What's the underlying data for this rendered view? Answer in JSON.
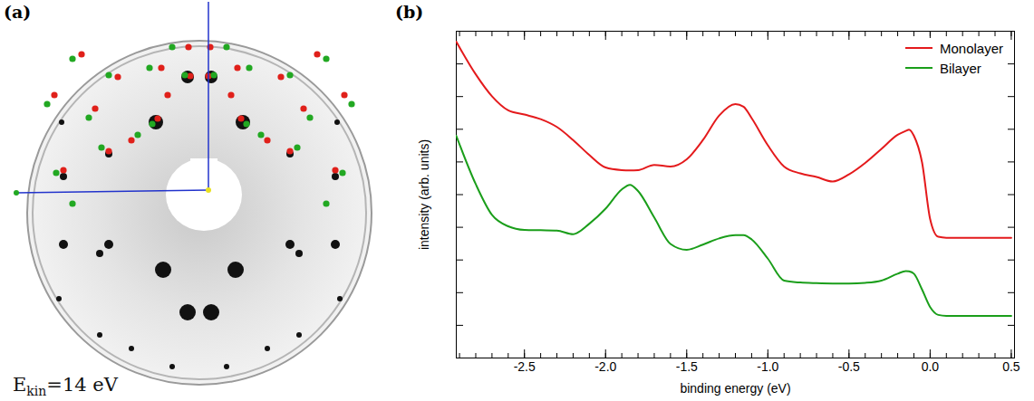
{
  "image_panel": {
    "label": "(a)",
    "energy_label": {
      "symbol": "E",
      "subscript": "kin",
      "text": "=14 eV"
    }
  },
  "chart_data": {
    "type": "line",
    "panel_label": "(b)",
    "x_label": "binding energy (eV)",
    "y_label": "intensity (arb. units)",
    "x": [
      -2.92,
      -2.8,
      -2.7,
      -2.6,
      -2.5,
      -2.4,
      -2.3,
      -2.2,
      -2.1,
      -2.0,
      -1.9,
      -1.85,
      -1.8,
      -1.7,
      -1.6,
      -1.5,
      -1.4,
      -1.3,
      -1.2,
      -1.15,
      -1.1,
      -1.0,
      -0.9,
      -0.8,
      -0.7,
      -0.6,
      -0.5,
      -0.4,
      -0.3,
      -0.2,
      -0.15,
      -0.13,
      -0.1,
      -0.05,
      0.0,
      0.05,
      0.1,
      0.2,
      0.3,
      0.4,
      0.5
    ],
    "series": [
      {
        "name": "Monolayer",
        "color": "#e41a1c",
        "values": [
          9.68,
          8.68,
          8.01,
          7.58,
          7.45,
          7.31,
          7.07,
          6.67,
          6.21,
          5.83,
          5.75,
          5.74,
          5.75,
          5.91,
          5.86,
          6.08,
          6.67,
          7.42,
          7.77,
          7.69,
          7.34,
          6.51,
          5.86,
          5.65,
          5.54,
          5.4,
          5.62,
          5.97,
          6.4,
          6.83,
          6.95,
          6.99,
          6.8,
          5.99,
          4.25,
          3.71,
          3.68,
          3.68,
          3.68,
          3.68,
          3.68
        ]
      },
      {
        "name": "Bilayer",
        "color": "#1a9e1a",
        "values": [
          6.8,
          5.32,
          4.38,
          4.03,
          3.92,
          3.91,
          3.9,
          3.79,
          4.11,
          4.57,
          5.16,
          5.3,
          5.11,
          4.3,
          3.49,
          3.31,
          3.47,
          3.66,
          3.76,
          3.76,
          3.63,
          3.04,
          2.37,
          2.31,
          2.29,
          2.28,
          2.28,
          2.3,
          2.37,
          2.58,
          2.66,
          2.65,
          2.58,
          2.1,
          1.56,
          1.32,
          1.29,
          1.29,
          1.29,
          1.29,
          1.29
        ]
      }
    ],
    "xlim": [
      -2.92,
      0.52
    ],
    "ylim": [
      0,
      10
    ],
    "xticks": [
      -2.5,
      {
        "value": -2.0,
        "label": "-2.0"
      },
      -1.5,
      {
        "value": -1.0,
        "label": "-1.0"
      },
      -0.5,
      {
        "value": 0.0,
        "label": "0.0"
      },
      0.5
    ],
    "yticks": [
      0,
      1,
      2,
      3,
      4,
      5,
      6,
      7,
      8,
      9,
      10
    ],
    "tick_labels": "x",
    "legend": "top-right",
    "grid": false
  }
}
